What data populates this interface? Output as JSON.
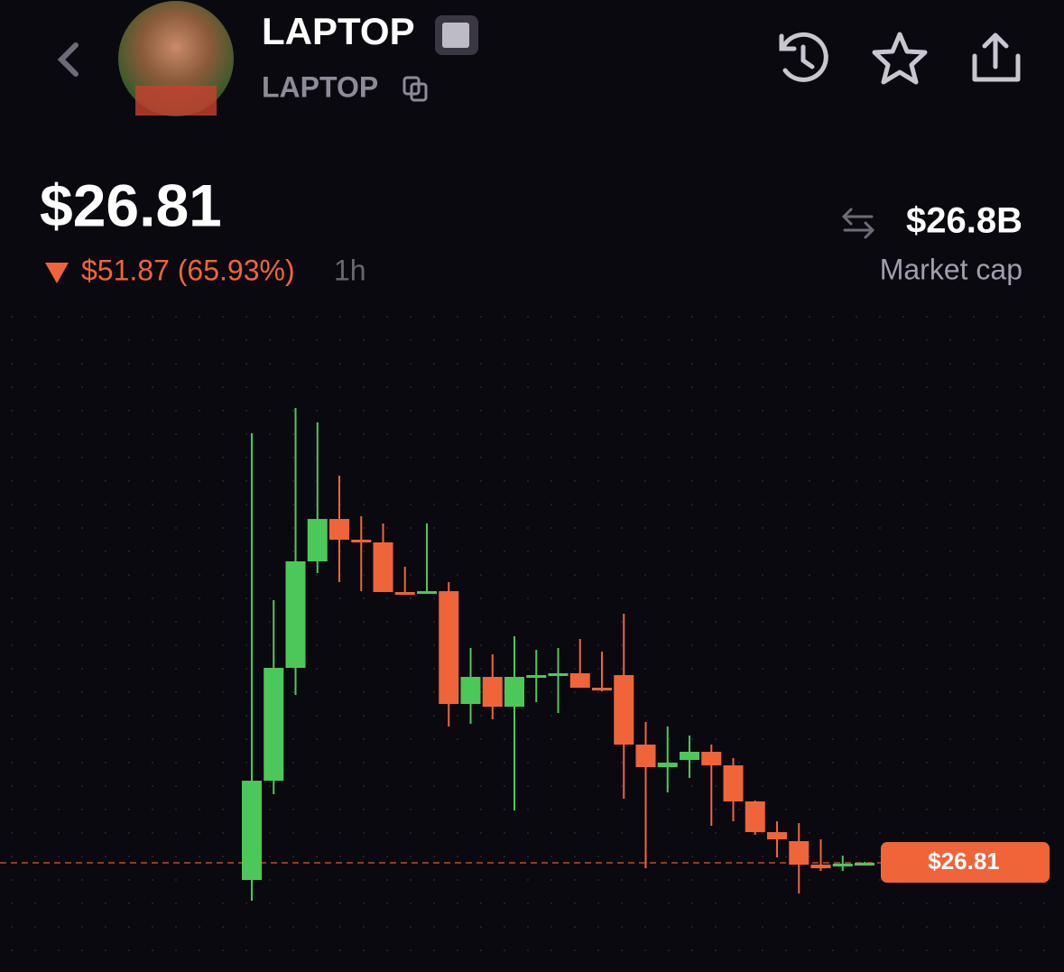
{
  "header": {
    "name": "LAPTOP",
    "ticker": "LAPTOP"
  },
  "price": "$26.81",
  "change": "$51.87 (65.93%)",
  "period": "1h",
  "market_cap": {
    "value": "$26.8B",
    "label": "Market cap"
  },
  "chart_data": {
    "type": "candlestick",
    "up_color": "#4cc85a",
    "down_color": "#f0643a",
    "ylim": [
      14.02,
      126.4
    ],
    "last_price": {
      "value": 26.81,
      "label": "$26.81"
    },
    "candles": [
      [
        23.52,
        109.11,
        19.55,
        42.54
      ],
      [
        42.54,
        77.12,
        39.95,
        64.16
      ],
      [
        64.16,
        113.95,
        58.97,
        84.56
      ],
      [
        84.56,
        111.19,
        82.31,
        92.68
      ],
      [
        92.68,
        100.98,
        80.58,
        88.71
      ],
      [
        88.71,
        93.2,
        78.85,
        88.19
      ],
      [
        88.19,
        91.82,
        78.68,
        78.68
      ],
      [
        78.68,
        83.52,
        78.33,
        78.33
      ],
      [
        78.33,
        91.82,
        78.33,
        78.85
      ],
      [
        78.85,
        80.58,
        52.92,
        57.24
      ],
      [
        57.24,
        67.96,
        53.44,
        62.43
      ],
      [
        62.43,
        66.75,
        54.3,
        56.72
      ],
      [
        56.72,
        70.21,
        36.84,
        62.43
      ],
      [
        62.43,
        67.61,
        57.59,
        62.77
      ],
      [
        62.77,
        67.96,
        55.51,
        63.12
      ],
      [
        63.12,
        69.69,
        60.35,
        60.35
      ],
      [
        60.35,
        67.27,
        59.66,
        60.01
      ],
      [
        62.77,
        74.53,
        39.09,
        49.46
      ],
      [
        49.46,
        53.78,
        25.77,
        45.14
      ],
      [
        45.14,
        52.92,
        40.3,
        46.0
      ],
      [
        46.52,
        51.19,
        43.06,
        48.08
      ],
      [
        48.08,
        49.46,
        33.9,
        45.48
      ],
      [
        45.48,
        46.87,
        34.76,
        38.57
      ],
      [
        38.57,
        38.74,
        32.17,
        32.69
      ],
      [
        32.69,
        34.76,
        27.85,
        31.31
      ],
      [
        30.96,
        34.42,
        20.93,
        26.46
      ],
      [
        26.46,
        31.31,
        25.25,
        25.77
      ],
      [
        26.12,
        28.19,
        25.25,
        26.64
      ],
      [
        26.64,
        26.98,
        26.64,
        26.81
      ]
    ]
  }
}
